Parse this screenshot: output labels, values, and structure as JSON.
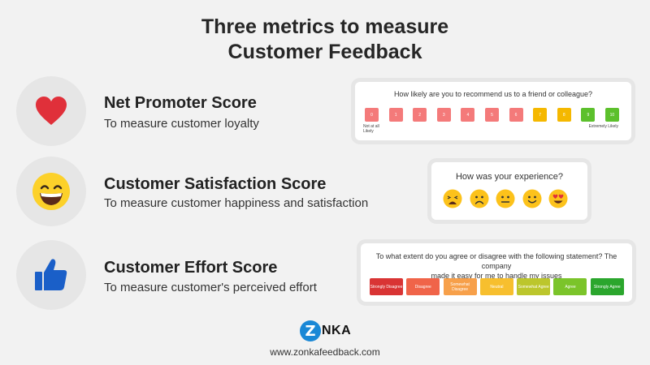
{
  "title": {
    "line1": "Three metrics to measure",
    "line2": "Customer Feedback"
  },
  "metrics": [
    {
      "name": "Net Promoter Score",
      "desc": "To measure customer loyalty",
      "icon": "heart-icon"
    },
    {
      "name": "Customer Satisfaction Score",
      "desc": "To measure customer happiness and satisfaction",
      "icon": "grinning-face-icon"
    },
    {
      "name": "Customer Effort Score",
      "desc": "To measure customer's perceived effort",
      "icon": "thumbs-up-icon"
    }
  ],
  "nps": {
    "question": "How likely are you to recommend us to a friend or colleague?",
    "scale": [
      {
        "label": "0",
        "color": "#f47a7a"
      },
      {
        "label": "1",
        "color": "#f47a7a"
      },
      {
        "label": "2",
        "color": "#f47a7a"
      },
      {
        "label": "3",
        "color": "#f47a7a"
      },
      {
        "label": "4",
        "color": "#f47a7a"
      },
      {
        "label": "5",
        "color": "#f47a7a"
      },
      {
        "label": "6",
        "color": "#f47a7a"
      },
      {
        "label": "7",
        "color": "#f5b800"
      },
      {
        "label": "8",
        "color": "#f5b800"
      },
      {
        "label": "9",
        "color": "#5cc02c"
      },
      {
        "label": "10",
        "color": "#5cc02c"
      }
    ],
    "low_label": "Not at all Likely",
    "high_label": "Extremely Likely"
  },
  "csat": {
    "question": "How was your experience?",
    "faces": [
      "tired-face-icon",
      "frowning-face-icon",
      "neutral-face-icon",
      "smiling-face-icon",
      "heart-eyes-face-icon"
    ]
  },
  "ces": {
    "question_line1": "To what extent do you agree or disagree with the following statement? The company",
    "question_line2": "made it easy for me to handle my issues",
    "options": [
      {
        "label": "Strongly Disagree",
        "color": "#d93434"
      },
      {
        "label": "Disagree",
        "color": "#f06449"
      },
      {
        "label": "Somewhat Disagree",
        "color": "#f7a04a"
      },
      {
        "label": "Neutral",
        "color": "#f7bf2e"
      },
      {
        "label": "Somewhat Agree",
        "color": "#bcc62c"
      },
      {
        "label": "Agree",
        "color": "#7bc42a"
      },
      {
        "label": "Strongly Agree",
        "color": "#2ba62d"
      }
    ]
  },
  "footer": {
    "logo_letter": "o",
    "logo_pre": "Z",
    "logo_post": "NKA",
    "url": "www.zonkafeedback.com"
  }
}
